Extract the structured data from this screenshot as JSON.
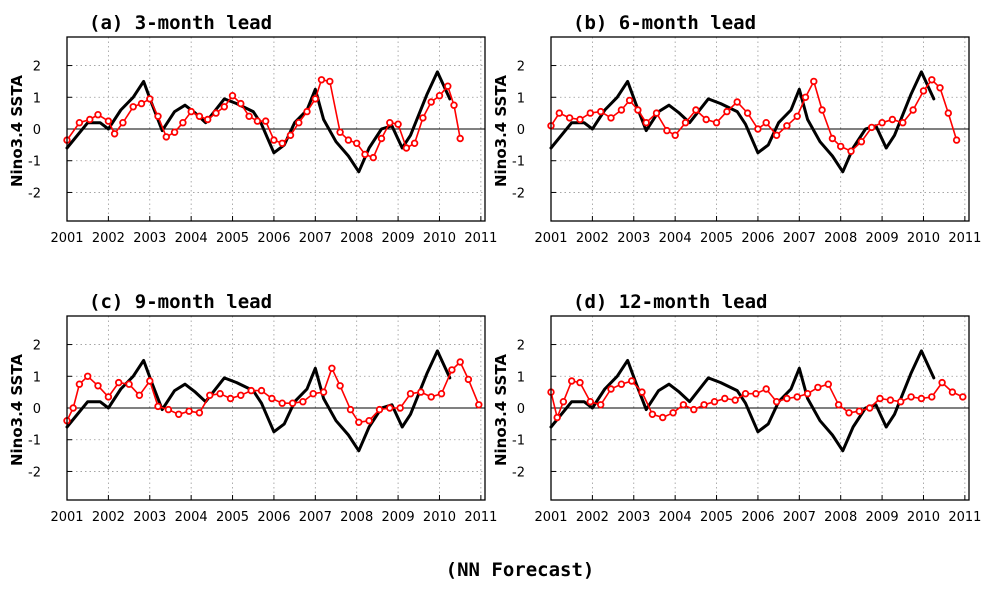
{
  "figure": {
    "caption": "(NN Forecast)",
    "ylabel": "Nino3.4 SSTA",
    "x_ticks": [
      "2001",
      "2002",
      "2003",
      "2004",
      "2005",
      "2006",
      "2007",
      "2008",
      "2009",
      "2010",
      "2011"
    ],
    "y_ticks": [
      "-2",
      "-1",
      "0",
      "1",
      "2"
    ],
    "observed_color": "#000000",
    "forecast_color": "#ff0000"
  },
  "chart_data": [
    {
      "type": "line",
      "title": "(a) 3-month lead",
      "xlim": [
        2001,
        2011.1
      ],
      "ylim": [
        -2.9,
        2.9
      ],
      "series": [
        {
          "style": "observed-line",
          "x": [
            2001.0,
            2001.5,
            2001.8,
            2002.0,
            2002.3,
            2002.6,
            2002.85,
            2003.05,
            2003.3,
            2003.6,
            2003.85,
            2004.1,
            2004.35,
            2004.8,
            2005.1,
            2005.5,
            2005.7,
            2006.0,
            2006.25,
            2006.5,
            2006.8,
            2007.0,
            2007.2,
            2007.5,
            2007.8,
            2008.05,
            2008.3,
            2008.6,
            2008.85,
            2009.1,
            2009.3,
            2009.7,
            2009.95,
            2010.25
          ],
          "y": [
            -0.6,
            0.2,
            0.2,
            0.0,
            0.6,
            1.0,
            1.5,
            0.8,
            -0.05,
            0.55,
            0.75,
            0.5,
            0.2,
            0.95,
            0.8,
            0.55,
            0.15,
            -0.75,
            -0.5,
            0.2,
            0.6,
            1.25,
            0.3,
            -0.4,
            -0.85,
            -1.35,
            -0.6,
            0.0,
            0.1,
            -0.6,
            -0.2,
            1.1,
            1.8,
            0.95
          ]
        },
        {
          "style": "forecast-markers",
          "x": [
            2001.0,
            2001.3,
            2001.55,
            2001.75,
            2002.0,
            2002.15,
            2002.35,
            2002.6,
            2002.8,
            2003.0,
            2003.2,
            2003.4,
            2003.6,
            2003.8,
            2004.0,
            2004.2,
            2004.4,
            2004.6,
            2004.8,
            2005.0,
            2005.2,
            2005.4,
            2005.6,
            2005.8,
            2006.0,
            2006.2,
            2006.4,
            2006.6,
            2006.8,
            2007.0,
            2007.15,
            2007.35,
            2007.6,
            2007.8,
            2008.0,
            2008.2,
            2008.4,
            2008.6,
            2008.8,
            2009.0,
            2009.2,
            2009.4,
            2009.6,
            2009.8,
            2010.0,
            2010.2,
            2010.35,
            2010.5
          ],
          "y": [
            -0.35,
            0.2,
            0.3,
            0.45,
            0.25,
            -0.15,
            0.2,
            0.7,
            0.8,
            0.95,
            0.4,
            -0.25,
            -0.1,
            0.2,
            0.55,
            0.4,
            0.3,
            0.5,
            0.7,
            1.05,
            0.8,
            0.4,
            0.25,
            0.25,
            -0.35,
            -0.45,
            -0.2,
            0.2,
            0.55,
            0.95,
            1.55,
            1.5,
            -0.1,
            -0.35,
            -0.45,
            -0.8,
            -0.9,
            -0.3,
            0.2,
            0.15,
            -0.6,
            -0.45,
            0.35,
            0.85,
            1.05,
            1.35,
            0.75,
            -0.3
          ]
        }
      ]
    },
    {
      "type": "line",
      "title": "(b) 6-month lead",
      "xlim": [
        2001,
        2011.1
      ],
      "ylim": [
        -2.9,
        2.9
      ],
      "series": [
        {
          "style": "observed-line",
          "x": [
            2001.0,
            2001.5,
            2001.8,
            2002.0,
            2002.3,
            2002.6,
            2002.85,
            2003.05,
            2003.3,
            2003.6,
            2003.85,
            2004.1,
            2004.35,
            2004.8,
            2005.1,
            2005.5,
            2005.7,
            2006.0,
            2006.25,
            2006.5,
            2006.8,
            2007.0,
            2007.2,
            2007.5,
            2007.8,
            2008.05,
            2008.3,
            2008.6,
            2008.85,
            2009.1,
            2009.3,
            2009.7,
            2009.95,
            2010.25
          ],
          "y": [
            -0.6,
            0.2,
            0.2,
            0.0,
            0.6,
            1.0,
            1.5,
            0.8,
            -0.05,
            0.55,
            0.75,
            0.5,
            0.2,
            0.95,
            0.8,
            0.55,
            0.15,
            -0.75,
            -0.5,
            0.2,
            0.6,
            1.25,
            0.3,
            -0.4,
            -0.85,
            -1.35,
            -0.6,
            0.0,
            0.1,
            -0.6,
            -0.2,
            1.1,
            1.8,
            0.95
          ]
        },
        {
          "style": "forecast-markers",
          "x": [
            2001.0,
            2001.2,
            2001.45,
            2001.7,
            2001.95,
            2002.2,
            2002.45,
            2002.7,
            2002.9,
            2003.1,
            2003.3,
            2003.55,
            2003.8,
            2004.0,
            2004.25,
            2004.5,
            2004.75,
            2005.0,
            2005.25,
            2005.5,
            2005.75,
            2006.0,
            2006.2,
            2006.45,
            2006.7,
            2006.95,
            2007.15,
            2007.35,
            2007.55,
            2007.8,
            2008.0,
            2008.25,
            2008.5,
            2008.75,
            2009.0,
            2009.25,
            2009.5,
            2009.75,
            2010.0,
            2010.2,
            2010.4,
            2010.6,
            2010.8
          ],
          "y": [
            0.1,
            0.5,
            0.35,
            0.3,
            0.5,
            0.55,
            0.35,
            0.6,
            0.9,
            0.6,
            0.2,
            0.5,
            -0.05,
            -0.2,
            0.2,
            0.6,
            0.3,
            0.2,
            0.55,
            0.85,
            0.5,
            0.0,
            0.2,
            -0.2,
            0.1,
            0.4,
            1.0,
            1.5,
            0.6,
            -0.3,
            -0.55,
            -0.7,
            -0.4,
            0.05,
            0.2,
            0.3,
            0.2,
            0.6,
            1.2,
            1.55,
            1.3,
            0.5,
            -0.35
          ]
        }
      ]
    },
    {
      "type": "line",
      "title": "(c) 9-month lead",
      "xlim": [
        2001,
        2011.1
      ],
      "ylim": [
        -2.9,
        2.9
      ],
      "series": [
        {
          "style": "observed-line",
          "x": [
            2001.0,
            2001.5,
            2001.8,
            2002.0,
            2002.3,
            2002.6,
            2002.85,
            2003.05,
            2003.3,
            2003.6,
            2003.85,
            2004.1,
            2004.35,
            2004.8,
            2005.1,
            2005.5,
            2005.7,
            2006.0,
            2006.25,
            2006.5,
            2006.8,
            2007.0,
            2007.2,
            2007.5,
            2007.8,
            2008.05,
            2008.3,
            2008.6,
            2008.85,
            2009.1,
            2009.3,
            2009.7,
            2009.95,
            2010.25
          ],
          "y": [
            -0.6,
            0.2,
            0.2,
            0.0,
            0.6,
            1.0,
            1.5,
            0.8,
            -0.05,
            0.55,
            0.75,
            0.5,
            0.2,
            0.95,
            0.8,
            0.55,
            0.15,
            -0.75,
            -0.5,
            0.2,
            0.6,
            1.25,
            0.3,
            -0.4,
            -0.85,
            -1.35,
            -0.6,
            0.0,
            0.1,
            -0.6,
            -0.2,
            1.1,
            1.8,
            0.95
          ]
        },
        {
          "style": "forecast-markers",
          "x": [
            2001.0,
            2001.15,
            2001.3,
            2001.5,
            2001.75,
            2002.0,
            2002.25,
            2002.5,
            2002.75,
            2003.0,
            2003.2,
            2003.45,
            2003.7,
            2003.95,
            2004.2,
            2004.45,
            2004.7,
            2004.95,
            2005.2,
            2005.45,
            2005.7,
            2005.95,
            2006.2,
            2006.45,
            2006.7,
            2006.95,
            2007.2,
            2007.4,
            2007.6,
            2007.85,
            2008.05,
            2008.3,
            2008.55,
            2008.8,
            2009.05,
            2009.3,
            2009.55,
            2009.8,
            2010.05,
            2010.3,
            2010.5,
            2010.7,
            2010.95
          ],
          "y": [
            -0.4,
            0.0,
            0.75,
            1.0,
            0.7,
            0.35,
            0.8,
            0.75,
            0.4,
            0.85,
            0.05,
            -0.05,
            -0.2,
            -0.1,
            -0.15,
            0.4,
            0.45,
            0.3,
            0.4,
            0.55,
            0.55,
            0.3,
            0.15,
            0.15,
            0.2,
            0.45,
            0.5,
            1.25,
            0.7,
            -0.05,
            -0.45,
            -0.4,
            -0.05,
            0.0,
            0.0,
            0.45,
            0.5,
            0.35,
            0.45,
            1.2,
            1.45,
            0.9,
            0.1
          ]
        }
      ]
    },
    {
      "type": "line",
      "title": "(d) 12-month lead",
      "xlim": [
        2001,
        2011.1
      ],
      "ylim": [
        -2.9,
        2.9
      ],
      "series": [
        {
          "style": "observed-line",
          "x": [
            2001.0,
            2001.5,
            2001.8,
            2002.0,
            2002.3,
            2002.6,
            2002.85,
            2003.05,
            2003.3,
            2003.6,
            2003.85,
            2004.1,
            2004.35,
            2004.8,
            2005.1,
            2005.5,
            2005.7,
            2006.0,
            2006.25,
            2006.5,
            2006.8,
            2007.0,
            2007.2,
            2007.5,
            2007.8,
            2008.05,
            2008.3,
            2008.6,
            2008.85,
            2009.1,
            2009.3,
            2009.7,
            2009.95,
            2010.25
          ],
          "y": [
            -0.6,
            0.2,
            0.2,
            0.0,
            0.6,
            1.0,
            1.5,
            0.8,
            -0.05,
            0.55,
            0.75,
            0.5,
            0.2,
            0.95,
            0.8,
            0.55,
            0.15,
            -0.75,
            -0.5,
            0.2,
            0.6,
            1.25,
            0.3,
            -0.4,
            -0.85,
            -1.35,
            -0.6,
            0.0,
            0.1,
            -0.6,
            -0.2,
            1.1,
            1.8,
            0.95
          ]
        },
        {
          "style": "forecast-markers",
          "x": [
            2001.0,
            2001.15,
            2001.3,
            2001.5,
            2001.7,
            2001.95,
            2002.2,
            2002.45,
            2002.7,
            2002.95,
            2003.2,
            2003.45,
            2003.7,
            2003.95,
            2004.2,
            2004.45,
            2004.7,
            2004.95,
            2005.2,
            2005.45,
            2005.7,
            2005.95,
            2006.2,
            2006.45,
            2006.7,
            2006.95,
            2007.2,
            2007.45,
            2007.7,
            2007.95,
            2008.2,
            2008.45,
            2008.7,
            2008.95,
            2009.2,
            2009.45,
            2009.7,
            2009.95,
            2010.2,
            2010.45,
            2010.7,
            2010.95
          ],
          "y": [
            0.5,
            -0.3,
            0.2,
            0.85,
            0.8,
            0.2,
            0.1,
            0.6,
            0.75,
            0.85,
            0.5,
            -0.2,
            -0.3,
            -0.15,
            0.1,
            -0.05,
            0.1,
            0.2,
            0.3,
            0.25,
            0.45,
            0.45,
            0.6,
            0.2,
            0.3,
            0.35,
            0.45,
            0.65,
            0.75,
            0.1,
            -0.15,
            -0.1,
            0.0,
            0.3,
            0.25,
            0.2,
            0.35,
            0.3,
            0.35,
            0.8,
            0.5,
            0.35
          ]
        }
      ]
    }
  ]
}
